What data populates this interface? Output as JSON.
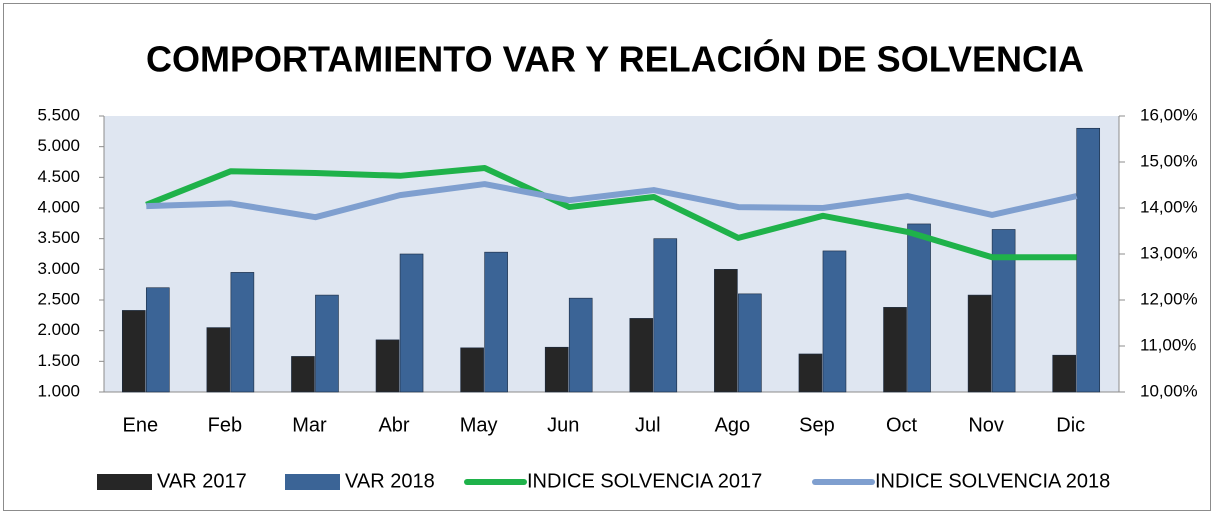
{
  "chart_data": {
    "type": "bar",
    "title": "COMPORTAMIENTO VAR Y RELACIÓN DE SOLVENCIA",
    "categories": [
      "Ene",
      "Feb",
      "Mar",
      "Abr",
      "May",
      "Jun",
      "Jul",
      "Ago",
      "Sep",
      "Oct",
      "Nov",
      "Dic"
    ],
    "series": [
      {
        "name": "VAR 2017",
        "type": "bar",
        "color": "#262626",
        "values": [
          2330,
          2050,
          1580,
          1850,
          1720,
          1730,
          2200,
          3000,
          1620,
          2380,
          2580,
          1600
        ]
      },
      {
        "name": "VAR 2018",
        "type": "bar",
        "color": "#3b6496",
        "values": [
          2700,
          2950,
          2580,
          3250,
          3280,
          2530,
          3500,
          2600,
          3300,
          3740,
          3650,
          5300
        ]
      },
      {
        "name": "INDICE SOLVENCIA 2017",
        "type": "line",
        "axis": "y2",
        "color": "#1fb24a",
        "values": [
          14.07,
          14.8,
          14.76,
          14.7,
          14.87,
          14.02,
          14.24,
          13.35,
          13.83,
          13.48,
          12.93,
          12.93
        ]
      },
      {
        "name": "INDICE SOLVENCIA 2018",
        "type": "line",
        "axis": "y2",
        "color": "#7f9fcf",
        "values": [
          14.04,
          14.1,
          13.8,
          14.28,
          14.52,
          14.17,
          14.39,
          14.02,
          14.0,
          14.26,
          13.85,
          14.26
        ]
      }
    ],
    "ylim": [
      1000,
      5500
    ],
    "yticks": [
      {
        "value": 1000,
        "label": "1.000"
      },
      {
        "value": 1500,
        "label": "1.500"
      },
      {
        "value": 2000,
        "label": "2.000"
      },
      {
        "value": 2500,
        "label": "2.500"
      },
      {
        "value": 3000,
        "label": "3.000"
      },
      {
        "value": 3500,
        "label": "3.500"
      },
      {
        "value": 4000,
        "label": "4.000"
      },
      {
        "value": 4500,
        "label": "4.500"
      },
      {
        "value": 5000,
        "label": "5.000"
      },
      {
        "value": 5500,
        "label": "5.500"
      }
    ],
    "y2lim": [
      10,
      16
    ],
    "y2ticks": [
      {
        "value": 10,
        "label": "10,00%"
      },
      {
        "value": 11,
        "label": "11,00%"
      },
      {
        "value": 12,
        "label": "12,00%"
      },
      {
        "value": 13,
        "label": "13,00%"
      },
      {
        "value": 14,
        "label": "14,00%"
      },
      {
        "value": 15,
        "label": "15,00%"
      },
      {
        "value": 16,
        "label": "16,00%"
      }
    ],
    "legend": "bottom"
  }
}
